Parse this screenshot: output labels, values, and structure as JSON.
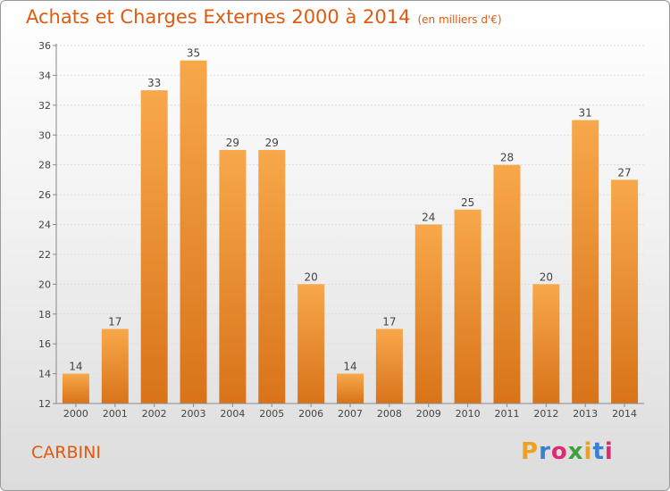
{
  "header": {
    "title": "Achats et Charges Externes 2000 à 2014",
    "subtitle": "(en milliers d'€)"
  },
  "footer": {
    "commune": "CARBINI",
    "logo": {
      "letters": [
        "P",
        "r",
        "o",
        "x",
        "i",
        "t",
        "i"
      ],
      "colors": [
        "#f0a020",
        "#3a7fd0",
        "#e02a70",
        "#40a040",
        "#f0a020",
        "#3a7fd0",
        "#e02a70"
      ]
    }
  },
  "colors": {
    "bar_light": "#f7a84a",
    "bar_dark": "#d9731a",
    "title": "#e05a10",
    "grid": "#dddddd"
  },
  "chart_data": {
    "type": "bar",
    "title": "Achats et Charges Externes 2000 à 2014",
    "subtitle": "(en milliers d'€)",
    "categories": [
      "2000",
      "2001",
      "2002",
      "2003",
      "2004",
      "2005",
      "2006",
      "2007",
      "2008",
      "2009",
      "2010",
      "2011",
      "2012",
      "2013",
      "2014"
    ],
    "values": [
      14,
      17,
      33,
      35,
      29,
      29,
      20,
      14,
      17,
      24,
      25,
      28,
      20,
      31,
      27
    ],
    "ylim": [
      12,
      36
    ],
    "yticks": [
      12,
      14,
      16,
      18,
      20,
      22,
      24,
      26,
      28,
      30,
      32,
      34,
      36
    ],
    "xlabel": "",
    "ylabel": "",
    "grid": true,
    "data_labels": true
  }
}
